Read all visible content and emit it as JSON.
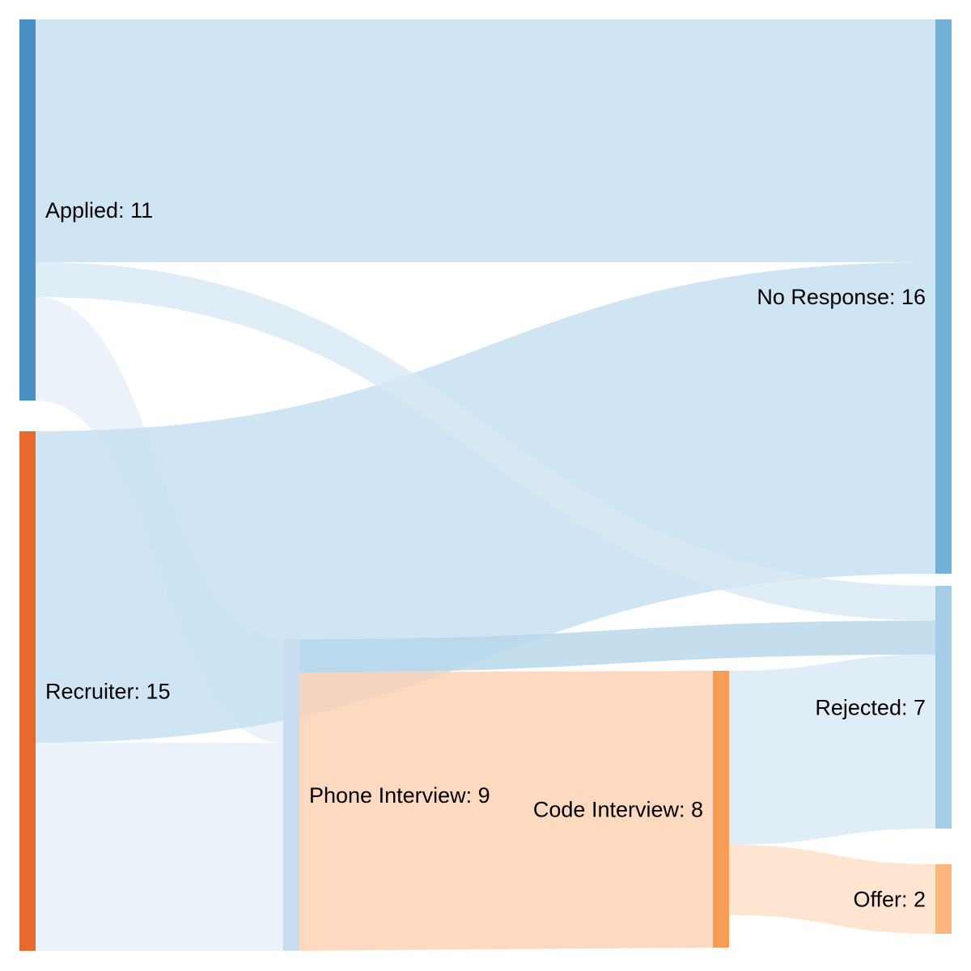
{
  "chart_data": {
    "type": "sankey",
    "title": "",
    "nodes": [
      {
        "id": "applied",
        "label": "Applied: 11",
        "color": "#4a8fc4"
      },
      {
        "id": "recruiter",
        "label": "Recruiter: 15",
        "color": "#e8692d"
      },
      {
        "id": "phone",
        "label": "Phone Interview: 9",
        "color": "#c9dcf0"
      },
      {
        "id": "code",
        "label": "Code Interview: 8",
        "color": "#f99d55"
      },
      {
        "id": "noresp",
        "label": "No Response: 16",
        "color": "#74b1d9"
      },
      {
        "id": "rejected",
        "label": "Rejected: 7",
        "color": "#a4cce4"
      },
      {
        "id": "offer",
        "label": "Offer: 2",
        "color": "#fbb57e"
      }
    ],
    "links": [
      {
        "source": "applied",
        "target": "noresp",
        "value": 7,
        "color": "#c4dff0"
      },
      {
        "source": "applied",
        "target": "rejected",
        "value": 1,
        "color": "#d7e9f4"
      },
      {
        "source": "applied",
        "target": "phone",
        "value": 3,
        "color": "#e6eff9"
      },
      {
        "source": "recruiter",
        "target": "noresp",
        "value": 9,
        "color": "#c4dff0"
      },
      {
        "source": "recruiter",
        "target": "phone",
        "value": 6,
        "color": "#e6eff9"
      },
      {
        "source": "phone",
        "target": "rejected",
        "value": 1,
        "color": "#b5d6ea"
      },
      {
        "source": "phone",
        "target": "code",
        "value": 8,
        "color": "#fcd0b0"
      },
      {
        "source": "code",
        "target": "rejected",
        "value": 5,
        "color": "#d7e9f4"
      },
      {
        "source": "code",
        "target": "offer",
        "value": 2,
        "color": "#fddec7"
      }
    ]
  }
}
